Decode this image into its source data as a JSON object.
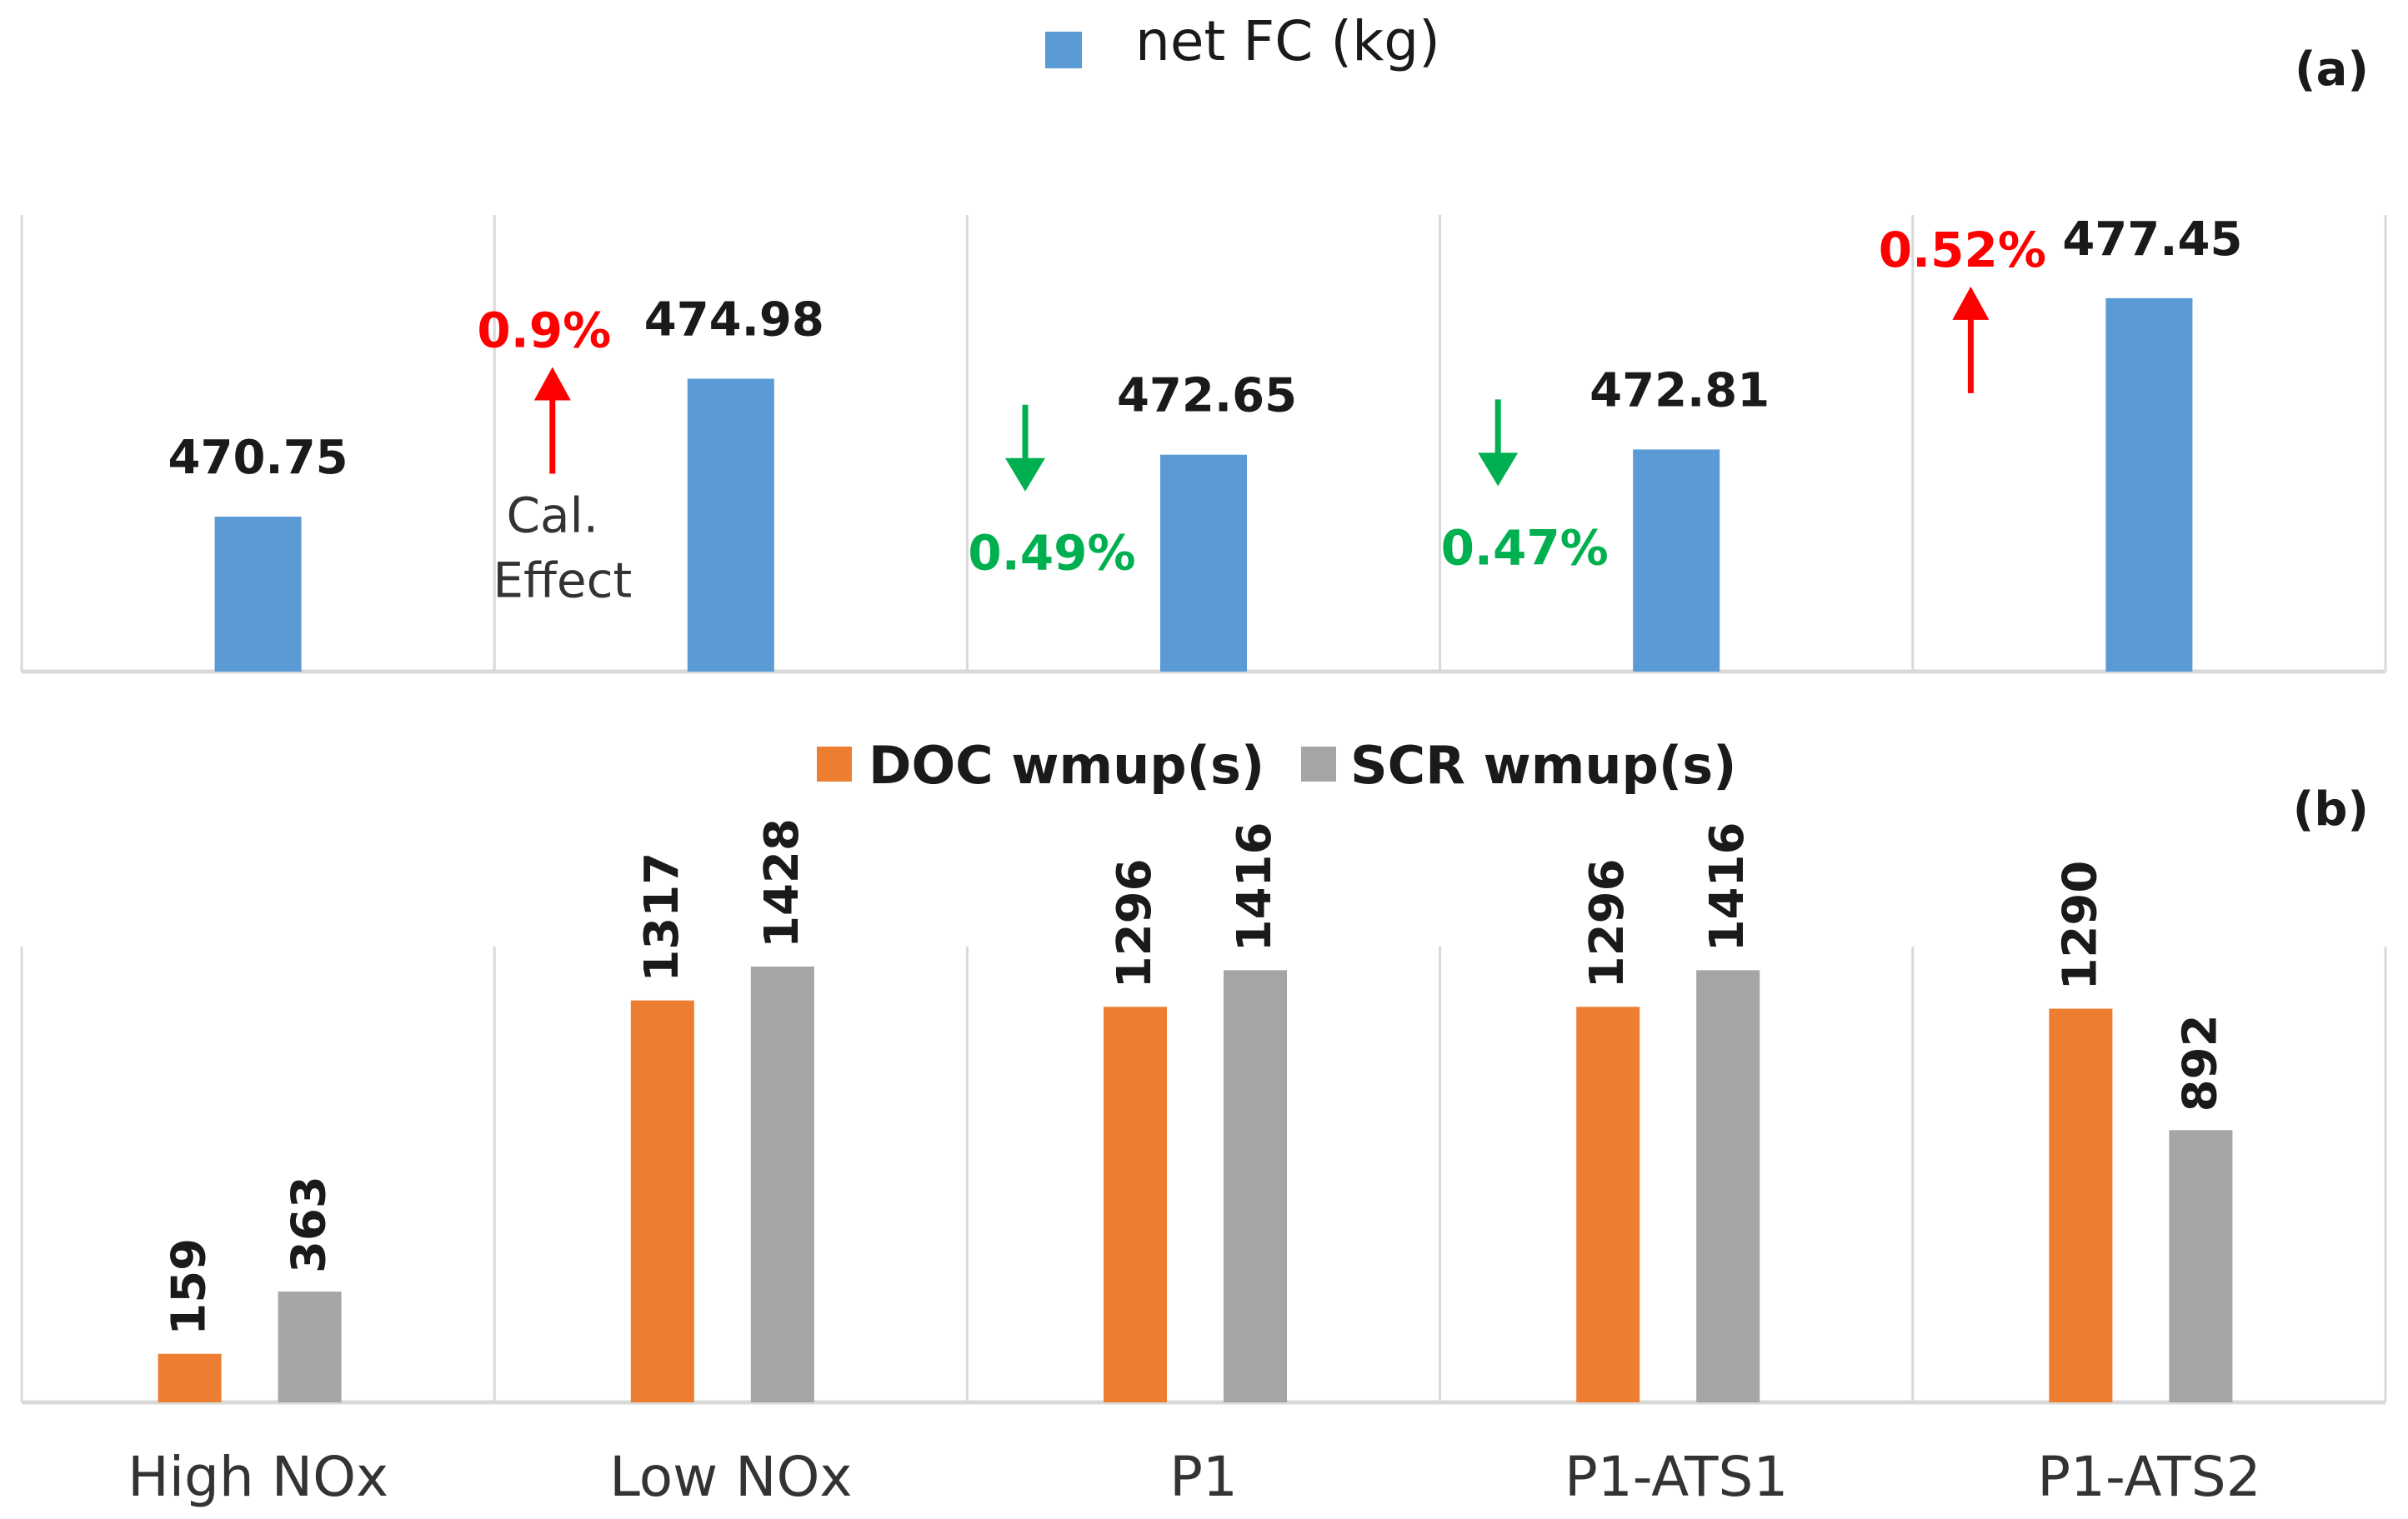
{
  "colors": {
    "fc": "#5B9BD5",
    "doc": "#ED7D31",
    "scr": "#A5A5A5",
    "increase": "#FF0000",
    "decrease": "#00B050",
    "grid": "#D9D9D9"
  },
  "chart_data": [
    {
      "type": "bar",
      "panel": "(a)",
      "categories": [
        "High NOx",
        "Low NOx",
        "P1",
        "P1-ATS1",
        "P1-ATS2"
      ],
      "series": [
        {
          "name": "net FC (kg)",
          "values": [
            470.75,
            474.98,
            472.65,
            472.81,
            477.45
          ]
        }
      ],
      "value_labels": [
        "470.75",
        "474.98",
        "472.65",
        "472.81",
        "477.45"
      ],
      "ylim": [
        466,
        480
      ],
      "legend": "top-center",
      "annotations": [
        {
          "category": "Low NOx",
          "text": "0.9%",
          "direction": "up",
          "note": "Cal. Effect"
        },
        {
          "category": "P1",
          "text": "0.49%",
          "direction": "down"
        },
        {
          "category": "P1-ATS1",
          "text": "0.47%",
          "direction": "down"
        },
        {
          "category": "P1-ATS2",
          "text": "0.52%",
          "direction": "up"
        }
      ]
    },
    {
      "type": "bar",
      "panel": "(b)",
      "categories": [
        "High NOx",
        "Low NOx",
        "P1",
        "P1-ATS1",
        "P1-ATS2"
      ],
      "series": [
        {
          "name": "DOC wmup(s)",
          "values": [
            159,
            1317,
            1296,
            1296,
            1290
          ]
        },
        {
          "name": "SCR wmup(s)",
          "values": [
            363,
            1428,
            1416,
            1416,
            892
          ]
        }
      ],
      "value_labels": [
        [
          "159",
          "1317",
          "1296",
          "1296",
          "1290"
        ],
        [
          "363",
          "1428",
          "1416",
          "1416",
          "892"
        ]
      ],
      "ylim": [
        0,
        1428
      ],
      "legend": "top-center"
    }
  ]
}
